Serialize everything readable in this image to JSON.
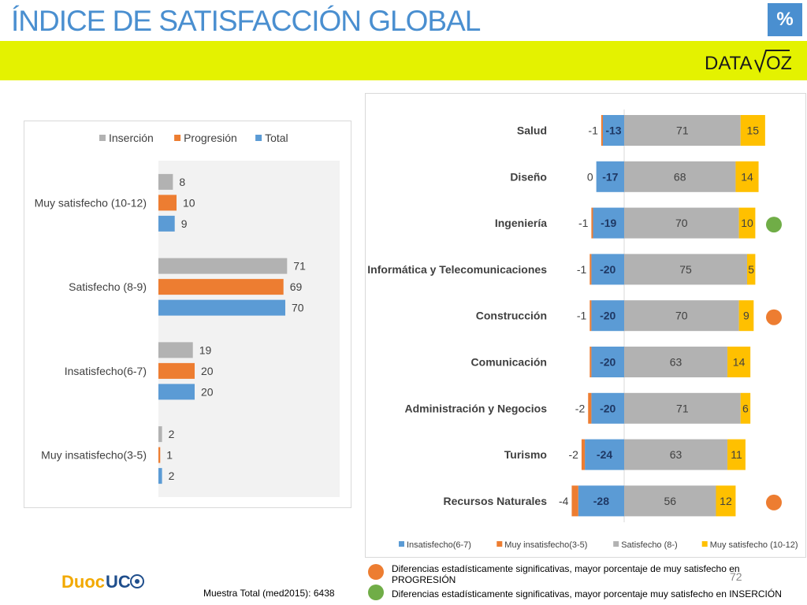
{
  "header": {
    "title": "ÍNDICE DE SATISFACCIÓN GLOBAL",
    "badge": "%",
    "brand": "DATAVOZ"
  },
  "colors": {
    "insercion": "#b2b2b2",
    "progresion": "#ed7d31",
    "total": "#5b9bd5",
    "muy_satisfecho": "#ffc000",
    "yellow_band": "#e4f200"
  },
  "chart_data": [
    {
      "type": "bar",
      "orientation": "horizontal",
      "categories": [
        "Muy satisfecho (10-12)",
        "Satisfecho (8-9)",
        "Insatisfecho(6-7)",
        "Muy insatisfecho(3-5)"
      ],
      "series": [
        {
          "name": "Inserción",
          "values": [
            8,
            71,
            19,
            2
          ]
        },
        {
          "name": "Progresión",
          "values": [
            10,
            69,
            20,
            1
          ]
        },
        {
          "name": "Total",
          "values": [
            9,
            70,
            20,
            2
          ]
        }
      ],
      "xlim": [
        0,
        100
      ],
      "legend": "top"
    },
    {
      "type": "bar",
      "orientation": "horizontal",
      "stacked": "diverging",
      "categories": [
        "Salud",
        "Diseño",
        "Ingeniería",
        "Informática y Telecomunicaciones",
        "Construcción",
        "Comunicación",
        "Administración y Negocios",
        "Turismo",
        "Recursos Naturales"
      ],
      "series": [
        {
          "name": "Insatisfecho(6-7)",
          "values": [
            -13,
            -17,
            -19,
            -20,
            -20,
            -20,
            -20,
            -24,
            -28
          ]
        },
        {
          "name": "Muy insatisfecho(3-5)",
          "values": [
            -1,
            0,
            -1,
            -1,
            -1,
            -1,
            -2,
            -2,
            -4
          ]
        },
        {
          "name": "Satisfecho (8-)",
          "values": [
            71,
            68,
            70,
            75,
            70,
            63,
            71,
            63,
            56
          ]
        },
        {
          "name": "Muy satisfecho (10-12)",
          "values": [
            15,
            14,
            10,
            5,
            9,
            14,
            6,
            11,
            12
          ]
        }
      ],
      "muy_insatisfecho_labels": [
        "-1",
        "0",
        "-1",
        "-1",
        "-1",
        "",
        "-2",
        "-2",
        "-4"
      ],
      "significance_markers": [
        "",
        "",
        "green",
        "",
        "orange",
        "",
        "",
        "",
        "orange"
      ],
      "legend": "bottom"
    }
  ],
  "footnotes": {
    "orange_note": "Diferencias estadísticamente significativas, mayor porcentaje  de muy satisfecho en PROGRESIÓN",
    "green_note": "Diferencias estadísticamente significativas, mayor porcentaje muy satisfecho en INSERCIÓN",
    "sample": "Muestra Total (med2015): 6438",
    "page_number": "72",
    "logo": "DuocUC"
  }
}
